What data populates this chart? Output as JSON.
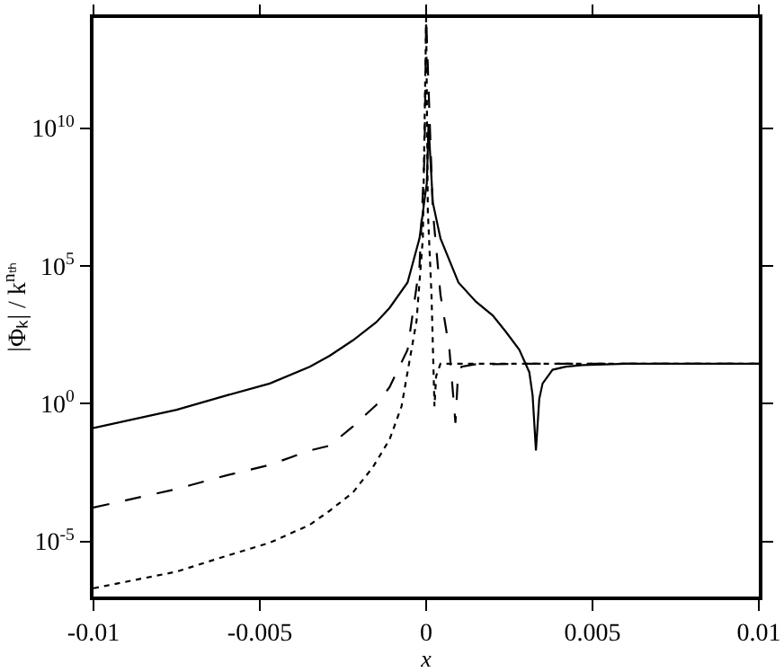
{
  "chart_data": {
    "type": "line",
    "xlabel": "x",
    "ylabel": "|Φₖ| / k$^{nₜₕ}$",
    "log": "y",
    "marker": "none",
    "xlim": [
      -0.01,
      0.01
    ],
    "xticks": [
      -0.01,
      -0.005,
      0,
      0.005,
      0.01
    ],
    "ylim": [
      1e-07,
      100000000000000.0
    ],
    "yticks": [
      {
        "value": 1e-05,
        "label": "10$^{-5}$"
      },
      {
        "value": 1,
        "label": "10$^{0}$"
      },
      {
        "value": 100000,
        "label": "10$^{5}$"
      },
      {
        "value": 10000000000.0,
        "label": "10$^{10}$"
      }
    ],
    "series": [
      {
        "color": "#000000",
        "line_style": "solid",
        "x": [
          -0.01,
          -0.0075,
          -0.006,
          -0.0047,
          -0.0035,
          -0.0029,
          -0.0022,
          -0.0015,
          -0.0011,
          -0.00056,
          -0.0002,
          -5e-05,
          2e-05,
          7e-05,
          0.0002,
          0.00043,
          0.00097,
          0.0015,
          0.002,
          0.0024,
          0.0028,
          0.0031,
          0.0032,
          0.0033,
          0.0034,
          0.0035,
          0.0038,
          0.0042,
          0.0047,
          0.006,
          0.008,
          0.01
        ],
        "values": [
          0.13,
          0.6,
          2,
          5.4,
          22,
          55,
          200,
          900,
          3000,
          25000,
          1000000.0,
          25000000.0,
          100000000.0,
          14000000000.0,
          20000000.0,
          1000000.0,
          25000,
          5000,
          1600,
          400,
          90,
          14,
          2,
          0.02,
          1.5,
          5.4,
          17,
          22,
          25,
          28,
          28,
          28
        ]
      },
      {
        "color": "#000000",
        "line_style": "dashed",
        "x": [
          -0.01,
          -0.0075,
          -0.006,
          -0.0047,
          -0.0035,
          -0.0029,
          -0.0022,
          -0.0015,
          -0.0011,
          -0.00056,
          -0.0002,
          -5e-05,
          0,
          0.0002,
          0.00043,
          0.0007,
          0.0008,
          0.00088,
          0.00095,
          0.00106,
          0.0015,
          0.003,
          0.006,
          0.01
        ],
        "values": [
          0.00017,
          0.0008,
          0.0025,
          0.006,
          0.02,
          0.03,
          0.15,
          0.9,
          4,
          90,
          100000,
          1000000000.0,
          100000000000000.0,
          10000000.0,
          9000,
          90,
          3,
          0.2,
          8,
          22,
          27,
          28,
          28,
          28
        ]
      },
      {
        "color": "#000000",
        "line_style": "dotted",
        "x": [
          -0.01,
          -0.0075,
          -0.006,
          -0.0047,
          -0.0035,
          -0.0029,
          -0.0022,
          -0.0016,
          -0.0011,
          -0.00074,
          -0.00029,
          -0.0001,
          0,
          5e-05,
          0.00016,
          0.00025,
          0.0003,
          0.00043,
          0.001,
          0.005,
          0.01
        ],
        "values": [
          2e-07,
          8e-07,
          3e-06,
          9e-06,
          4e-05,
          0.00013,
          0.0006,
          0.005,
          0.05,
          0.8,
          1000,
          1000000.0,
          100000000000000.0,
          10000000.0,
          9000,
          0.8,
          10,
          28,
          28,
          28,
          28
        ]
      }
    ]
  }
}
